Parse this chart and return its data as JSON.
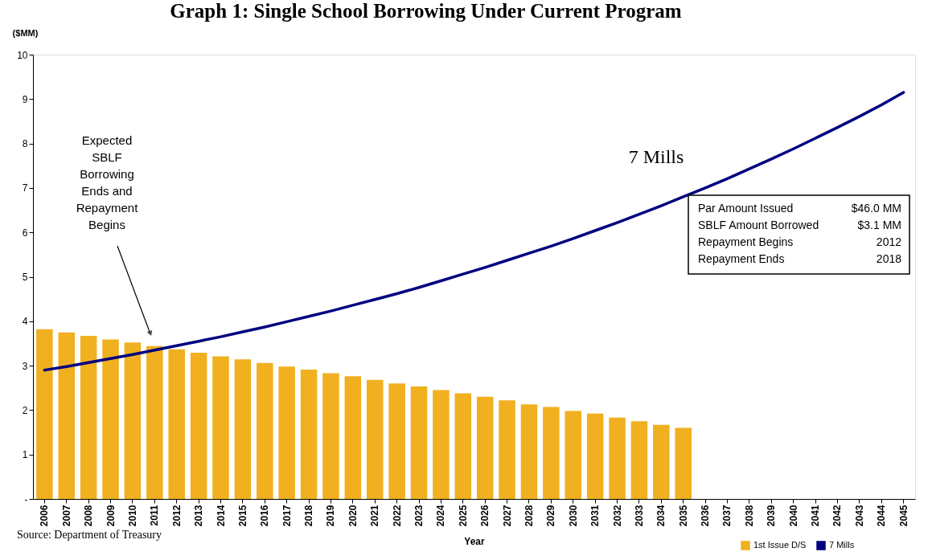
{
  "chart_data": {
    "type": "bar",
    "title": "Graph 1: Single School Borrowing Under Current Program",
    "xlabel": "Year",
    "ylabel": "($MM)",
    "categories": [
      "2006",
      "2007",
      "2008",
      "2009",
      "2010",
      "2011",
      "2012",
      "2013",
      "2014",
      "2015",
      "2016",
      "2017",
      "2018",
      "2019",
      "2020",
      "2021",
      "2022",
      "2023",
      "2024",
      "2025",
      "2026",
      "2027",
      "2028",
      "2029",
      "2030",
      "2031",
      "2032",
      "2033",
      "2034",
      "2035",
      "2036",
      "2037",
      "2038",
      "2039",
      "2040",
      "2041",
      "2042",
      "2043",
      "2044",
      "2045"
    ],
    "series": [
      {
        "name": "1st Issue D/S",
        "color": "#f0b020",
        "values": [
          3.82,
          3.75,
          3.67,
          3.59,
          3.52,
          3.44,
          3.37,
          3.29,
          3.21,
          3.14,
          3.06,
          2.98,
          2.91,
          2.83,
          2.76,
          2.68,
          2.6,
          2.53,
          2.45,
          2.38,
          2.3,
          2.22,
          2.13,
          2.07,
          1.98,
          1.92,
          1.83,
          1.75,
          1.67,
          1.6,
          null,
          null,
          null,
          null,
          null,
          null,
          null,
          null,
          null,
          null
        ]
      },
      {
        "name": "7 Mills",
        "color": "#000080",
        "type": "line",
        "values": [
          2.9,
          2.98,
          3.07,
          3.16,
          3.25,
          3.35,
          3.45,
          3.55,
          3.65,
          3.76,
          3.87,
          3.99,
          4.11,
          4.23,
          4.36,
          4.49,
          4.62,
          4.76,
          4.91,
          5.06,
          5.21,
          5.37,
          5.53,
          5.69,
          5.86,
          6.04,
          6.22,
          6.41,
          6.6,
          6.8,
          7.0,
          7.21,
          7.43,
          7.65,
          7.88,
          8.12,
          8.36,
          8.61,
          8.87,
          9.15
        ]
      }
    ],
    "ylim": [
      0,
      10
    ],
    "yticks": [
      {
        "value": 0,
        "label": "-"
      },
      1,
      2,
      3,
      4,
      5,
      6,
      7,
      8,
      9,
      10
    ],
    "grid": false,
    "legend": "bottom right",
    "line_style": "solid",
    "marker": "none",
    "annotations": [
      "Expected\nSBLF\nBorrowing\nEnds and\nRepayment\nBegins",
      "7 Mills",
      "Par Amount Issued",
      "$46.0 MM",
      "SBLF Amount Borrowed",
      "$3.1 MM",
      "Repayment Begins",
      "2012",
      "Repayment Ends",
      "2018",
      "Source: Department of Treasury"
    ]
  }
}
